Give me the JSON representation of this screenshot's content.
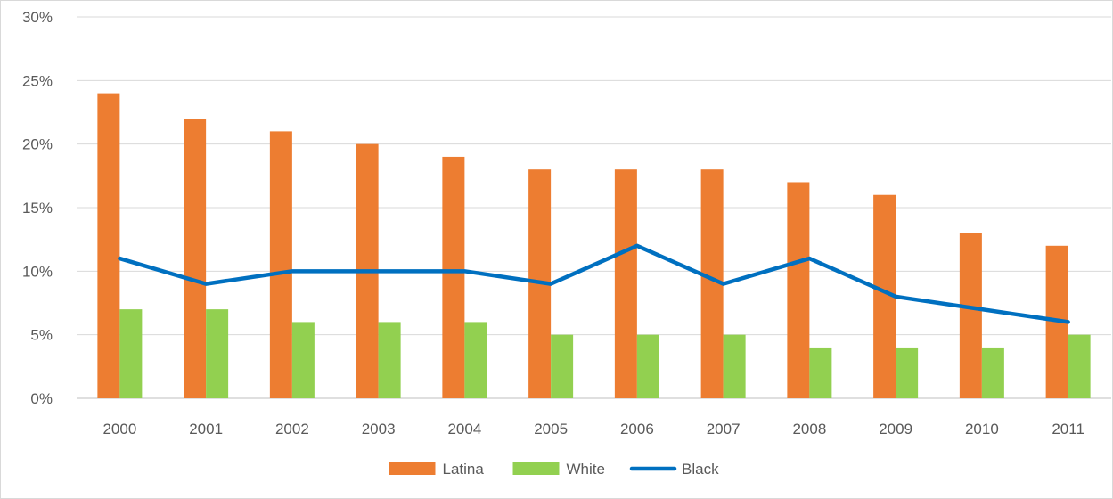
{
  "chart_data": {
    "type": "bar",
    "categories": [
      "2000",
      "2001",
      "2002",
      "2003",
      "2004",
      "2005",
      "2006",
      "2007",
      "2008",
      "2009",
      "2010",
      "2011"
    ],
    "series": [
      {
        "name": "Latina",
        "type": "bar",
        "color": "#ed7d31",
        "values": [
          24,
          22,
          21,
          20,
          19,
          18,
          18,
          18,
          17,
          16,
          13,
          12
        ]
      },
      {
        "name": "White",
        "type": "bar",
        "color": "#92d050",
        "values": [
          7,
          7,
          6,
          6,
          6,
          5,
          5,
          5,
          4,
          4,
          4,
          5
        ]
      },
      {
        "name": "Black",
        "type": "line",
        "color": "#0070c0",
        "values": [
          11,
          9,
          10,
          10,
          10,
          9,
          12,
          9,
          11,
          8,
          7,
          6
        ]
      }
    ],
    "ylim": [
      0,
      30
    ],
    "yticks": [
      0,
      5,
      10,
      15,
      20,
      25,
      30
    ],
    "ytick_labels": [
      "0%",
      "5%",
      "10%",
      "15%",
      "20%",
      "25%",
      "30%"
    ],
    "y_unit": "%",
    "grid": true,
    "legend": "bottom",
    "title": "",
    "xlabel": "",
    "ylabel": ""
  }
}
